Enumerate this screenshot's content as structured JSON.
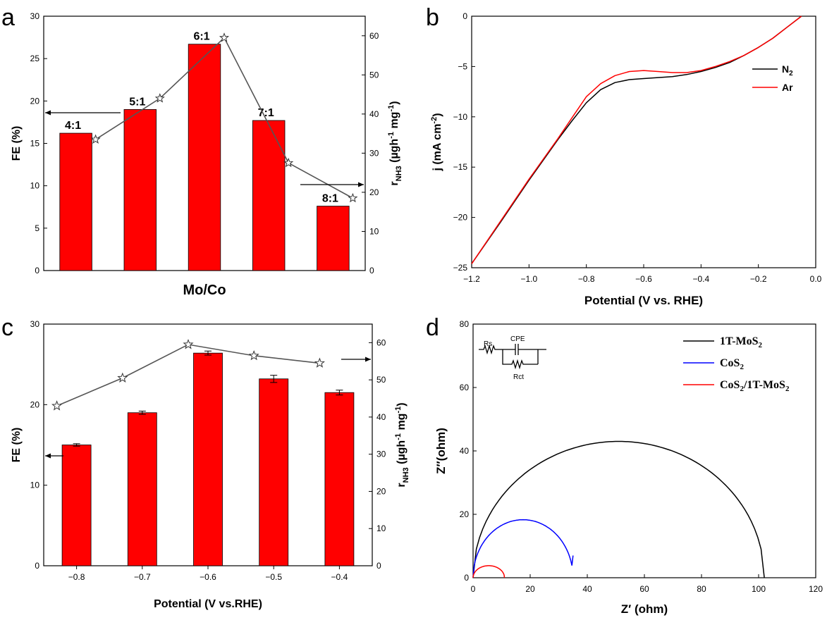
{
  "panels": [
    {
      "id": "a",
      "label": "a"
    },
    {
      "id": "b",
      "label": "b"
    },
    {
      "id": "c",
      "label": "c"
    },
    {
      "id": "d",
      "label": "d"
    }
  ],
  "circuit": {
    "rs": "Rs",
    "cpe": "CPE",
    "rct": "Rct"
  },
  "colors": {
    "bar": "#ff0000",
    "marker_line": "#555555",
    "n2": "#000000",
    "ar": "#ff0000",
    "mos2": "#000000",
    "cos2": "#0000ff",
    "composite": "#ff0000"
  },
  "chart_data": [
    {
      "panel": "a",
      "type": "bar",
      "xlabel": "Mo/Co",
      "ylabel": "FE (%)",
      "ylabel_right": "r_NH3 (µgh⁻¹ mg⁻¹)",
      "ylim": [
        0,
        30
      ],
      "ylim_right": [
        0,
        65
      ],
      "yticks": [
        0,
        5,
        10,
        15,
        20,
        25,
        30
      ],
      "yticks_right": [
        0,
        10,
        20,
        30,
        40,
        50,
        60
      ],
      "categories": [
        "4:1",
        "5:1",
        "6:1",
        "7:1",
        "8:1"
      ],
      "series": [
        {
          "axis": "left",
          "kind": "bar",
          "values": [
            16.2,
            19.0,
            26.7,
            17.7,
            7.6
          ]
        },
        {
          "axis": "right",
          "kind": "line-star",
          "values": [
            33.5,
            44.0,
            59.5,
            27.5,
            18.5
          ]
        }
      ]
    },
    {
      "panel": "b",
      "type": "line",
      "xlabel": "Potential (V vs. RHE)",
      "ylabel": "j (mA cm⁻²)",
      "xlim": [
        -1.2,
        0.0
      ],
      "ylim": [
        -25,
        0
      ],
      "xticks": [
        -1.2,
        -1.0,
        -0.8,
        -0.6,
        -0.4,
        -0.2,
        0.0
      ],
      "yticks": [
        0,
        -5,
        -10,
        -15,
        -20,
        -25
      ],
      "legend_position": "top-right",
      "series": [
        {
          "name": "N₂",
          "x": [
            -1.2,
            -1.1,
            -1.0,
            -0.9,
            -0.85,
            -0.8,
            -0.75,
            -0.7,
            -0.65,
            -0.6,
            -0.55,
            -0.5,
            -0.45,
            -0.4,
            -0.35,
            -0.3,
            -0.25,
            -0.2,
            -0.15,
            -0.1,
            -0.05
          ],
          "y": [
            -24.6,
            -20.5,
            -16.3,
            -12.3,
            -10.4,
            -8.6,
            -7.3,
            -6.6,
            -6.3,
            -6.2,
            -6.1,
            -6.0,
            -5.8,
            -5.5,
            -5.1,
            -4.6,
            -3.9,
            -3.1,
            -2.2,
            -1.1,
            0.0
          ]
        },
        {
          "name": "Ar",
          "x": [
            -1.2,
            -1.1,
            -1.0,
            -0.9,
            -0.85,
            -0.8,
            -0.75,
            -0.7,
            -0.65,
            -0.6,
            -0.55,
            -0.5,
            -0.45,
            -0.4,
            -0.35,
            -0.3,
            -0.25,
            -0.2,
            -0.15,
            -0.1,
            -0.05
          ],
          "y": [
            -24.6,
            -20.4,
            -16.2,
            -12.2,
            -10.1,
            -8.0,
            -6.7,
            -5.9,
            -5.5,
            -5.4,
            -5.5,
            -5.6,
            -5.6,
            -5.4,
            -5.0,
            -4.5,
            -3.9,
            -3.1,
            -2.2,
            -1.1,
            0.0
          ]
        }
      ]
    },
    {
      "panel": "c",
      "type": "bar",
      "xlabel": "Potential (V vs.RHE)",
      "ylabel": "FE (%)",
      "ylabel_right": "r_NH3 (µgh⁻¹ mg⁻¹)",
      "ylim": [
        0,
        30
      ],
      "ylim_right": [
        0,
        65
      ],
      "yticks": [
        0,
        10,
        20,
        30
      ],
      "yticks_right": [
        0,
        10,
        20,
        30,
        40,
        50,
        60
      ],
      "categories": [
        "-0.8",
        "-0.7",
        "-0.6",
        "-0.5",
        "-0.4"
      ],
      "series": [
        {
          "axis": "left",
          "kind": "bar",
          "values": [
            15.0,
            19.0,
            26.4,
            23.2,
            21.5
          ],
          "errors": [
            0.15,
            0.2,
            0.25,
            0.45,
            0.3
          ]
        },
        {
          "axis": "right",
          "kind": "line-star",
          "values": [
            43.0,
            50.5,
            59.5,
            56.5,
            54.5
          ]
        }
      ]
    },
    {
      "panel": "d",
      "type": "line",
      "xlabel": "Z′ (ohm)",
      "ylabel": "Z″(ohm)",
      "xlim": [
        0,
        120
      ],
      "ylim": [
        0,
        80
      ],
      "xticks": [
        0,
        20,
        40,
        60,
        80,
        100,
        120
      ],
      "yticks": [
        0,
        20,
        40,
        60,
        80
      ],
      "legend_position": "top-right",
      "series": [
        {
          "name": "1T-MoS₂",
          "kind": "arc",
          "start": 0,
          "end": 102,
          "peak": 43,
          "peak_at": 52
        },
        {
          "name": "CoS₂",
          "kind": "arc",
          "start": 0,
          "end": 35,
          "peak": 18.3,
          "peak_at": 18.5,
          "stop": 35,
          "stop_y": 7
        },
        {
          "name": "CoS₂/1T-MoS₂",
          "kind": "arc",
          "start": 0,
          "end": 11,
          "peak": 3.8,
          "peak_at": 5.5
        }
      ]
    }
  ]
}
